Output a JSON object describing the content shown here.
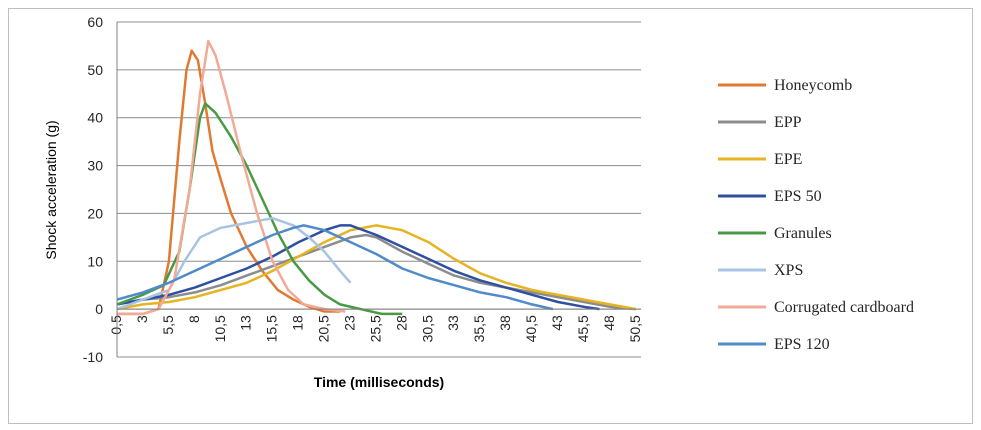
{
  "chart_data": {
    "type": "line",
    "xlabel": "Time (milliseconds)",
    "ylabel": "Shock acceleration (g)",
    "ylim": [
      -10,
      60
    ],
    "yticks": [
      -10,
      0,
      10,
      20,
      30,
      40,
      50,
      60
    ],
    "xlim": [
      0.5,
      51
    ],
    "xticks": [
      "0,5",
      "3",
      "5,5",
      "8",
      "10,5",
      "13",
      "15,5",
      "18",
      "20,5",
      "23",
      "25,5",
      "28",
      "30,5",
      "33",
      "35,5",
      "38",
      "40,5",
      "43",
      "45,5",
      "48",
      "50,5"
    ],
    "grid": "horizontal",
    "legend_position": "right",
    "series": [
      {
        "name": "Honeycomb",
        "color": "#e07a33",
        "points": [
          [
            0.5,
            -1
          ],
          [
            3,
            -1
          ],
          [
            4.5,
            0
          ],
          [
            5.5,
            10
          ],
          [
            6.5,
            35
          ],
          [
            7.2,
            50
          ],
          [
            7.7,
            54
          ],
          [
            8.3,
            52
          ],
          [
            9,
            43
          ],
          [
            9.7,
            33
          ],
          [
            10.5,
            27
          ],
          [
            11.5,
            20
          ],
          [
            13,
            13
          ],
          [
            14.5,
            8
          ],
          [
            16,
            4
          ],
          [
            17.5,
            2
          ],
          [
            19,
            0.5
          ],
          [
            20.5,
            -0.5
          ],
          [
            22,
            -0.5
          ]
        ]
      },
      {
        "name": "EPP",
        "color": "#8c8c8c",
        "points": [
          [
            0.5,
            1
          ],
          [
            3,
            2
          ],
          [
            5.5,
            2.5
          ],
          [
            8,
            3.5
          ],
          [
            10.5,
            5
          ],
          [
            13,
            7
          ],
          [
            15.5,
            9
          ],
          [
            18,
            11
          ],
          [
            20.5,
            13
          ],
          [
            23,
            15
          ],
          [
            24.5,
            15.5
          ],
          [
            25.5,
            15
          ],
          [
            28,
            12
          ],
          [
            30.5,
            9.5
          ],
          [
            33,
            7
          ],
          [
            35.5,
            5.5
          ],
          [
            38,
            4.5
          ],
          [
            40.5,
            3.5
          ],
          [
            43,
            2.5
          ],
          [
            45.5,
            1.5
          ],
          [
            48,
            0.5
          ],
          [
            50.5,
            0
          ]
        ]
      },
      {
        "name": "EPE",
        "color": "#e6b422",
        "points": [
          [
            0.5,
            0
          ],
          [
            3,
            1
          ],
          [
            5.5,
            1.5
          ],
          [
            8,
            2.5
          ],
          [
            10.5,
            4
          ],
          [
            13,
            5.5
          ],
          [
            15.5,
            8
          ],
          [
            18,
            11
          ],
          [
            20.5,
            14
          ],
          [
            23,
            16.5
          ],
          [
            25.5,
            17.5
          ],
          [
            28,
            16.5
          ],
          [
            30.5,
            14
          ],
          [
            33,
            10.5
          ],
          [
            35.5,
            7.5
          ],
          [
            38,
            5.5
          ],
          [
            40.5,
            4
          ],
          [
            43,
            3
          ],
          [
            45.5,
            2
          ],
          [
            48,
            1
          ],
          [
            50.5,
            0
          ]
        ]
      },
      {
        "name": "EPS 50",
        "color": "#2f4f9f",
        "points": [
          [
            0.5,
            1
          ],
          [
            3,
            2
          ],
          [
            5.5,
            3
          ],
          [
            8,
            4.5
          ],
          [
            10.5,
            6.5
          ],
          [
            13,
            8.5
          ],
          [
            15.5,
            11
          ],
          [
            18,
            14
          ],
          [
            20.5,
            16.5
          ],
          [
            22,
            17.5
          ],
          [
            23,
            17.5
          ],
          [
            25.5,
            15.5
          ],
          [
            28,
            13
          ],
          [
            30.5,
            10.5
          ],
          [
            33,
            8
          ],
          [
            35.5,
            6
          ],
          [
            38,
            4.5
          ],
          [
            40.5,
            3
          ],
          [
            43,
            1.5
          ],
          [
            45.5,
            0.5
          ],
          [
            47,
            0
          ]
        ]
      },
      {
        "name": "Granules",
        "color": "#4a9a45",
        "points": [
          [
            0.5,
            1
          ],
          [
            3,
            3
          ],
          [
            5,
            5
          ],
          [
            6.5,
            12
          ],
          [
            7.5,
            25
          ],
          [
            8.5,
            40
          ],
          [
            9,
            43
          ],
          [
            10,
            41
          ],
          [
            11.5,
            36
          ],
          [
            13,
            30
          ],
          [
            14.5,
            23
          ],
          [
            16,
            16
          ],
          [
            17.5,
            10
          ],
          [
            19,
            6
          ],
          [
            20.5,
            3
          ],
          [
            22,
            1
          ],
          [
            24,
            0
          ],
          [
            26,
            -1
          ],
          [
            28,
            -1
          ]
        ]
      },
      {
        "name": "XPS",
        "color": "#a8c4e3",
        "points": [
          [
            0.5,
            0
          ],
          [
            3,
            2
          ],
          [
            5.5,
            4
          ],
          [
            7,
            10
          ],
          [
            8.5,
            15
          ],
          [
            10.5,
            17
          ],
          [
            13,
            18
          ],
          [
            15.5,
            19
          ],
          [
            17.5,
            17.5
          ],
          [
            19,
            15
          ],
          [
            20.5,
            12
          ],
          [
            22,
            8
          ],
          [
            23,
            5.5
          ]
        ]
      },
      {
        "name": "Corrugated cardboard",
        "color": "#f0aa96",
        "points": [
          [
            0.5,
            -1
          ],
          [
            3,
            -1
          ],
          [
            4.5,
            0
          ],
          [
            6,
            6
          ],
          [
            7.5,
            25
          ],
          [
            8.5,
            45
          ],
          [
            9.3,
            56
          ],
          [
            10,
            53
          ],
          [
            11,
            45
          ],
          [
            12.5,
            32
          ],
          [
            14,
            20
          ],
          [
            15.5,
            10
          ],
          [
            17,
            4
          ],
          [
            18.5,
            1
          ],
          [
            20.5,
            0
          ],
          [
            22.5,
            -0.5
          ]
        ]
      },
      {
        "name": "EPS 120",
        "color": "#4f8ac9",
        "points": [
          [
            0.5,
            2
          ],
          [
            3,
            3.5
          ],
          [
            5.5,
            5.5
          ],
          [
            8,
            8
          ],
          [
            10.5,
            10.5
          ],
          [
            13,
            13
          ],
          [
            15.5,
            15.5
          ],
          [
            17.5,
            17
          ],
          [
            18.5,
            17.5
          ],
          [
            20.5,
            16.5
          ],
          [
            23,
            14
          ],
          [
            25.5,
            11.5
          ],
          [
            28,
            8.5
          ],
          [
            30.5,
            6.5
          ],
          [
            33,
            5
          ],
          [
            35.5,
            3.5
          ],
          [
            38,
            2.5
          ],
          [
            40.5,
            1
          ],
          [
            42.5,
            0
          ]
        ]
      }
    ]
  }
}
